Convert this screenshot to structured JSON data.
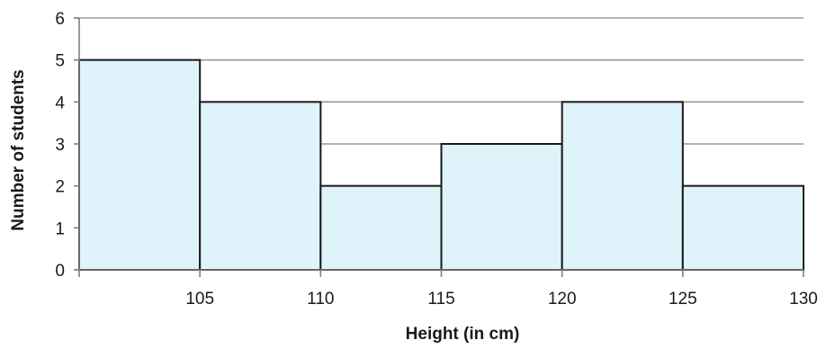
{
  "chart_data": {
    "type": "bar",
    "subtype": "histogram",
    "title": "",
    "xlabel": "Height (in cm)",
    "ylabel": "Number of students",
    "bins": [
      {
        "start": 100,
        "end": 105,
        "value": 5
      },
      {
        "start": 105,
        "end": 110,
        "value": 4
      },
      {
        "start": 110,
        "end": 115,
        "value": 2
      },
      {
        "start": 115,
        "end": 120,
        "value": 3
      },
      {
        "start": 120,
        "end": 125,
        "value": 4
      },
      {
        "start": 125,
        "end": 130,
        "value": 2
      }
    ],
    "xlim": [
      100,
      130
    ],
    "ylim": [
      0,
      6
    ],
    "x_ticks": [
      105,
      110,
      115,
      120,
      125,
      130
    ],
    "y_ticks": [
      0,
      1,
      2,
      3,
      4,
      5,
      6
    ],
    "grid": true,
    "bar_color": "#dff3fb",
    "bar_edge_color": "#1a1a1a"
  }
}
